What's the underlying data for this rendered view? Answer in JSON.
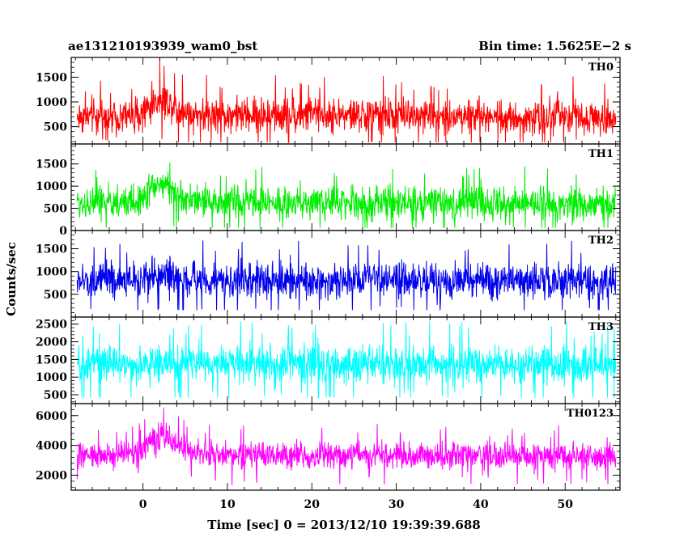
{
  "header": {
    "left": "ae131210193939_wam0_bst",
    "right": "Bin time: 1.5625E−2 s"
  },
  "chart_data": {
    "type": "line",
    "xlabel": "Time [sec] 0 = 2013/12/10 19:39:39.688",
    "ylabel": "Counts/sec",
    "xlim": [
      -8.5,
      56.5
    ],
    "x_ticks": [
      0,
      10,
      20,
      30,
      40,
      50
    ],
    "x_tick_labels": [
      "0",
      "10",
      "20",
      "30",
      "40",
      "50"
    ],
    "data_xrange": [
      -7.8,
      56
    ],
    "bin_time_s": 0.015625,
    "panels": [
      {
        "name": "TH0",
        "color": "#ff0000",
        "ylim": [
          150,
          1900
        ],
        "y_ticks": [
          500,
          1000,
          1500
        ],
        "y_tick_labels": [
          "500",
          "1000",
          "1500"
        ],
        "profile": [
          [
            -7.8,
            700
          ],
          [
            -1,
            710
          ],
          [
            0,
            800
          ],
          [
            1,
            950
          ],
          [
            2,
            1050
          ],
          [
            3,
            1000
          ],
          [
            4,
            880
          ],
          [
            5,
            780
          ],
          [
            8,
            740
          ],
          [
            56,
            700
          ]
        ],
        "spread": 420,
        "min_value": 180,
        "max_value": 1900
      },
      {
        "name": "TH1",
        "color": "#00ee00",
        "ylim": [
          0,
          1950
        ],
        "y_ticks": [
          0,
          500,
          1000,
          1500
        ],
        "y_tick_labels": [
          "0",
          "500",
          "1000",
          "1500"
        ],
        "profile": [
          [
            -7.8,
            620
          ],
          [
            -1,
            640
          ],
          [
            0,
            760
          ],
          [
            1,
            980
          ],
          [
            2,
            1050
          ],
          [
            3,
            980
          ],
          [
            4,
            820
          ],
          [
            5,
            720
          ],
          [
            8,
            640
          ],
          [
            56,
            600
          ]
        ],
        "spread": 430,
        "min_value": 60,
        "max_value": 1950
      },
      {
        "name": "TH2",
        "color": "#0000ee",
        "ylim": [
          0,
          1900
        ],
        "y_ticks": [
          500,
          1000,
          1500
        ],
        "y_tick_labels": [
          "500",
          "1000",
          "1500"
        ],
        "profile": [
          [
            -7.8,
            780
          ],
          [
            -1,
            800
          ],
          [
            1,
            880
          ],
          [
            2.5,
            950
          ],
          [
            4,
            880
          ],
          [
            6,
            830
          ],
          [
            10,
            800
          ],
          [
            56,
            790
          ]
        ],
        "spread": 460,
        "min_value": 150,
        "max_value": 1880
      },
      {
        "name": "TH3",
        "color": "#00ffff",
        "ylim": [
          250,
          2700
        ],
        "y_ticks": [
          500,
          1000,
          1500,
          2000,
          2500
        ],
        "y_tick_labels": [
          "500",
          "1000",
          "1500",
          "2000",
          "2500"
        ],
        "profile": [
          [
            -7.8,
            1350
          ],
          [
            0,
            1380
          ],
          [
            10,
            1360
          ],
          [
            56,
            1350
          ]
        ],
        "spread": 620,
        "min_value": 420,
        "max_value": 2650
      },
      {
        "name": "TH0123",
        "color": "#ff00ff",
        "ylim": [
          1000,
          6800
        ],
        "y_ticks": [
          2000,
          4000,
          6000
        ],
        "y_tick_labels": [
          "2000",
          "4000",
          "6000"
        ],
        "profile": [
          [
            -7.8,
            3300
          ],
          [
            -1,
            3400
          ],
          [
            0,
            3800
          ],
          [
            1,
            4300
          ],
          [
            2,
            4600
          ],
          [
            3,
            4500
          ],
          [
            4,
            4100
          ],
          [
            5,
            3700
          ],
          [
            7,
            3400
          ],
          [
            56,
            3250
          ]
        ],
        "spread": 1050,
        "min_value": 1100,
        "max_value": 6600
      }
    ]
  }
}
